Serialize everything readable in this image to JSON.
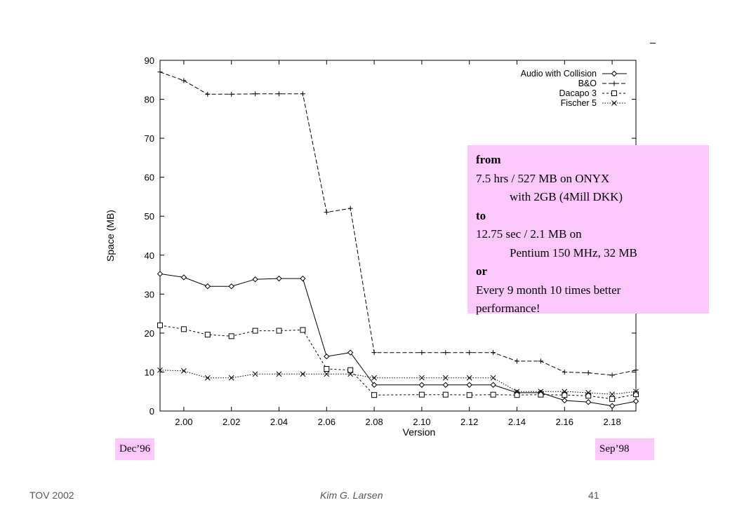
{
  "chart_data": {
    "type": "line",
    "xlabel": "Version",
    "ylabel": "Space (MB)",
    "xlim": [
      1.99,
      2.19
    ],
    "ylim": [
      0,
      90
    ],
    "xticks": [
      "2.00",
      "2.02",
      "2.04",
      "2.06",
      "2.08",
      "2.10",
      "2.12",
      "2.14",
      "2.16",
      "2.18"
    ],
    "yticks": [
      "0",
      "10",
      "20",
      "30",
      "40",
      "50",
      "60",
      "70",
      "80",
      "90"
    ],
    "grid": false,
    "legend": "top-right",
    "x": [
      1.99,
      2.0,
      2.01,
      2.02,
      2.03,
      2.04,
      2.05,
      2.06,
      2.07,
      2.08,
      2.1,
      2.11,
      2.12,
      2.13,
      2.14,
      2.15,
      2.16,
      2.17,
      2.18,
      2.19
    ],
    "series": [
      {
        "name": "Audio with Collision",
        "marker": "diamond",
        "dash": "",
        "values": [
          35.2,
          34.3,
          32.0,
          32.0,
          33.8,
          34.0,
          34.0,
          14.0,
          15.0,
          6.7,
          6.7,
          6.7,
          6.7,
          6.7,
          4.7,
          4.7,
          2.7,
          2.3,
          1.3,
          2.5
        ]
      },
      {
        "name": "B&O",
        "marker": "plus",
        "dash": "6,3",
        "values": [
          87.0,
          84.8,
          81.3,
          81.3,
          81.4,
          81.4,
          81.4,
          51.0,
          52.0,
          15.0,
          15.0,
          15.0,
          15.0,
          15.0,
          12.8,
          12.8,
          10.0,
          9.8,
          9.2,
          10.5
        ]
      },
      {
        "name": "Dacapo 3",
        "marker": "square",
        "dash": "3,3",
        "values": [
          22.0,
          21.0,
          19.6,
          19.2,
          20.6,
          20.6,
          20.8,
          10.8,
          10.5,
          4.1,
          4.2,
          4.2,
          4.1,
          4.2,
          4.1,
          4.2,
          4.1,
          3.9,
          3.1,
          4.3
        ]
      },
      {
        "name": "Fischer 5",
        "marker": "cross",
        "dash": "1.5,2",
        "values": [
          10.5,
          10.3,
          8.5,
          8.5,
          9.5,
          9.5,
          9.5,
          9.5,
          9.5,
          8.5,
          8.5,
          8.5,
          8.5,
          8.5,
          5.0,
          5.0,
          5.0,
          4.7,
          4.3,
          5.0
        ]
      }
    ]
  },
  "callout": {
    "l1": "from",
    "l2": "7.5 hrs / 527 MB on ONYX",
    "l3": "with 2GB (4Mill DKK)",
    "l4": "to",
    "l5": "12.75 sec / 2.1 MB on",
    "l6": "Pentium 150 MHz, 32 MB",
    "l7": "or",
    "l8": "Every 9 month 10 times better",
    "l9": "performance!"
  },
  "dates": {
    "start": "Dec’96",
    "end": "Sep’98"
  },
  "footer": {
    "left": "TOV 2002",
    "center": "Kim G. Larsen",
    "page": "41"
  }
}
